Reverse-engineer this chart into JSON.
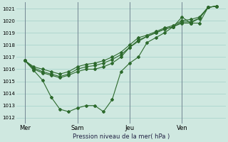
{
  "background_color": "#cfe8e0",
  "grid_color": "#aad4cc",
  "line_color": "#2d6a2d",
  "xlabel": "Pression niveau de la mer( hPa )",
  "ylim": [
    1011.5,
    1021.5
  ],
  "yticks": [
    1012,
    1013,
    1014,
    1015,
    1016,
    1017,
    1018,
    1019,
    1020,
    1021
  ],
  "xlim": [
    0,
    12
  ],
  "day_labels": [
    "Mer",
    "Sam",
    "Jeu",
    "Ven"
  ],
  "day_positions": [
    0.5,
    3.5,
    6.5,
    9.5
  ],
  "vline_positions": [
    0.5,
    3.5,
    6.5,
    9.5
  ],
  "series": [
    {
      "x": [
        0.5,
        1.0,
        1.5,
        2.0,
        2.5,
        3.0,
        3.5,
        4.0,
        4.5,
        5.0,
        5.5,
        6.0,
        6.5,
        7.0,
        7.5,
        8.0,
        8.5,
        9.0,
        9.5,
        10.0,
        10.5,
        11.0,
        11.5
      ],
      "y": [
        1016.7,
        1015.9,
        1015.1,
        1013.7,
        1012.7,
        1012.5,
        1012.8,
        1013.0,
        1013.0,
        1012.5,
        1013.5,
        1015.8,
        1016.5,
        1017.0,
        1018.2,
        1018.6,
        1019.0,
        1019.5,
        1020.3,
        1019.8,
        1019.8,
        1021.1,
        1021.2
      ]
    },
    {
      "x": [
        0.5,
        1.0,
        1.5,
        2.0,
        2.5,
        3.0,
        3.5,
        4.0,
        4.5,
        5.0,
        5.5,
        6.0,
        6.5,
        7.0,
        7.5,
        8.0,
        8.5,
        9.0,
        9.5,
        10.0,
        10.5,
        11.0,
        11.5
      ],
      "y": [
        1016.7,
        1016.0,
        1015.7,
        1015.5,
        1015.3,
        1015.5,
        1015.8,
        1016.0,
        1016.0,
        1016.2,
        1016.5,
        1017.0,
        1017.8,
        1018.3,
        1018.7,
        1019.0,
        1019.3,
        1019.5,
        1019.8,
        1019.8,
        1020.2,
        1021.1,
        1021.2
      ]
    },
    {
      "x": [
        0.5,
        1.0,
        1.5,
        2.0,
        2.5,
        3.0,
        3.5,
        4.0,
        4.5,
        5.0,
        5.5,
        6.0,
        6.5,
        7.0,
        7.5,
        8.0,
        8.5,
        9.0,
        9.5,
        10.0,
        10.5,
        11.0,
        11.5
      ],
      "y": [
        1016.7,
        1016.1,
        1015.8,
        1015.6,
        1015.4,
        1015.6,
        1016.0,
        1016.2,
        1016.3,
        1016.5,
        1016.8,
        1017.2,
        1017.8,
        1018.4,
        1018.7,
        1019.0,
        1019.3,
        1019.5,
        1019.9,
        1019.9,
        1020.2,
        1021.1,
        1021.2
      ]
    },
    {
      "x": [
        0.5,
        1.0,
        1.5,
        2.0,
        2.5,
        3.0,
        3.5,
        4.0,
        4.5,
        5.0,
        5.5,
        6.0,
        6.5,
        7.0,
        7.5,
        8.0,
        8.5,
        9.0,
        9.5,
        10.0,
        10.5,
        11.0,
        11.5
      ],
      "y": [
        1016.7,
        1016.2,
        1016.0,
        1015.8,
        1015.6,
        1015.8,
        1016.2,
        1016.4,
        1016.5,
        1016.7,
        1017.0,
        1017.4,
        1018.0,
        1018.6,
        1018.8,
        1019.1,
        1019.4,
        1019.6,
        1020.0,
        1020.1,
        1020.3,
        1021.1,
        1021.2
      ]
    }
  ]
}
